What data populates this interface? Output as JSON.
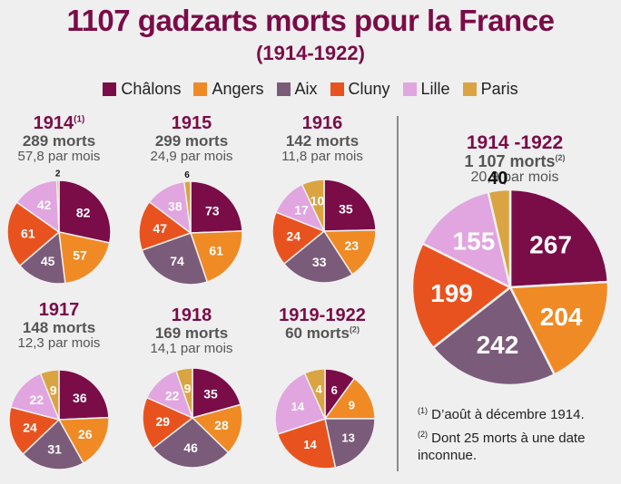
{
  "title": "1107 gadzarts morts pour la France",
  "subtitle": "(1914-1922)",
  "legend": [
    {
      "name": "Châlons",
      "color": "#7a0c48"
    },
    {
      "name": "Angers",
      "color": "#f08a24"
    },
    {
      "name": "Aix",
      "color": "#7b5b7a"
    },
    {
      "name": "Cluny",
      "color": "#e8521f"
    },
    {
      "name": "Lille",
      "color": "#e1a5e0"
    },
    {
      "name": "Paris",
      "color": "#d9a441"
    }
  ],
  "charts": [
    {
      "year": "1914",
      "note": "(1)",
      "deaths": "289 morts",
      "deaths_note": "",
      "rate": "57,8 par mois"
    },
    {
      "year": "1915",
      "note": "",
      "deaths": "299 morts",
      "deaths_note": "",
      "rate": "24,9 par mois"
    },
    {
      "year": "1916",
      "note": "",
      "deaths": "142 morts",
      "deaths_note": "",
      "rate": "11,8 par mois"
    },
    {
      "year": "1917",
      "note": "",
      "deaths": "148 morts",
      "deaths_note": "",
      "rate": "12,3 par mois"
    },
    {
      "year": "1918",
      "note": "",
      "deaths": "169 morts",
      "deaths_note": "",
      "rate": "14,1 par mois"
    },
    {
      "year": "1919-1922",
      "note": "",
      "deaths": "60 morts",
      "deaths_note": "(2)",
      "rate": ""
    },
    {
      "year": "1914 -1922",
      "note": "",
      "deaths": "1 107 morts",
      "deaths_note": "(2)",
      "rate": "20,9 par mois"
    }
  ],
  "footnotes": [
    {
      "mark": "(1)",
      "text": "D’août à décembre 1914."
    },
    {
      "mark": "(2)",
      "text": "Dont 25 morts à une date inconnue."
    }
  ],
  "chart_data": [
    {
      "type": "pie",
      "title": "1914",
      "categories": [
        "Châlons",
        "Angers",
        "Aix",
        "Cluny",
        "Lille",
        "Paris"
      ],
      "values": [
        82,
        57,
        45,
        61,
        42,
        2
      ]
    },
    {
      "type": "pie",
      "title": "1915",
      "categories": [
        "Châlons",
        "Angers",
        "Aix",
        "Cluny",
        "Lille",
        "Paris"
      ],
      "values": [
        73,
        61,
        74,
        47,
        38,
        6
      ]
    },
    {
      "type": "pie",
      "title": "1916",
      "categories": [
        "Châlons",
        "Angers",
        "Aix",
        "Cluny",
        "Lille",
        "Paris"
      ],
      "values": [
        35,
        23,
        33,
        24,
        17,
        10
      ]
    },
    {
      "type": "pie",
      "title": "1917",
      "categories": [
        "Châlons",
        "Angers",
        "Aix",
        "Cluny",
        "Lille",
        "Paris"
      ],
      "values": [
        36,
        26,
        31,
        24,
        22,
        9
      ]
    },
    {
      "type": "pie",
      "title": "1918",
      "categories": [
        "Châlons",
        "Angers",
        "Aix",
        "Cluny",
        "Lille",
        "Paris"
      ],
      "values": [
        35,
        28,
        46,
        29,
        22,
        9
      ]
    },
    {
      "type": "pie",
      "title": "1919-1922",
      "categories": [
        "Châlons",
        "Angers",
        "Aix",
        "Cluny",
        "Lille",
        "Paris"
      ],
      "values": [
        6,
        9,
        13,
        14,
        14,
        4
      ]
    },
    {
      "type": "pie",
      "title": "1914 -1922",
      "categories": [
        "Châlons",
        "Angers",
        "Aix",
        "Cluny",
        "Lille",
        "Paris"
      ],
      "values": [
        267,
        204,
        242,
        199,
        155,
        40
      ]
    }
  ]
}
